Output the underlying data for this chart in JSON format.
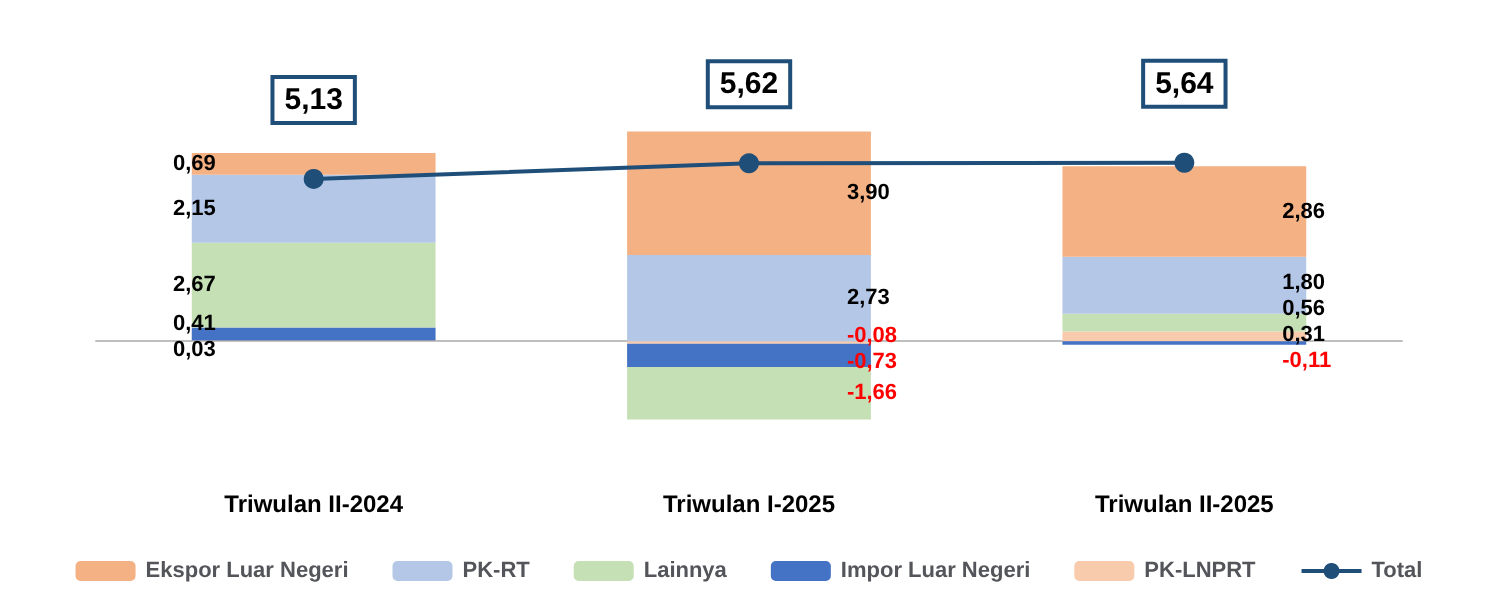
{
  "chart_data": {
    "type": "bar",
    "stacked": true,
    "categories": [
      "Triwulan II-2024",
      "Triwulan I-2025",
      "Triwulan II-2025"
    ],
    "series": [
      {
        "name": "PK-LNPRT",
        "color": "#f8cbad",
        "values": [
          0.03,
          -0.08,
          0.31
        ],
        "value_labels": [
          "0,03",
          "-0,08",
          "0,31"
        ]
      },
      {
        "name": "Impor Luar Negeri",
        "color": "#4472c4",
        "values": [
          0.41,
          -0.73,
          -0.11
        ],
        "value_labels": [
          "0,41",
          "-0,73",
          "-0,11"
        ]
      },
      {
        "name": "Lainnya",
        "color": "#c5e0b4",
        "values": [
          2.67,
          -1.66,
          0.56
        ],
        "value_labels": [
          "2,67",
          "-1,66",
          "0,56"
        ]
      },
      {
        "name": "PK-RT",
        "color": "#b4c7e7",
        "values": [
          2.15,
          2.73,
          1.8
        ],
        "value_labels": [
          "2,15",
          "2,73",
          "1,80"
        ]
      },
      {
        "name": "Ekspor Luar Negeri",
        "color": "#f4b183",
        "values": [
          0.69,
          3.9,
          2.86
        ],
        "value_labels": [
          "0,69",
          "3,90",
          "2,86"
        ]
      },
      {
        "name": "Total",
        "type": "line",
        "color": "#1f4e79",
        "marker": "circle",
        "values": [
          5.13,
          5.62,
          5.64
        ],
        "value_labels": [
          "5,13",
          "5,62",
          "5,64"
        ]
      }
    ],
    "legend": "bottom"
  }
}
